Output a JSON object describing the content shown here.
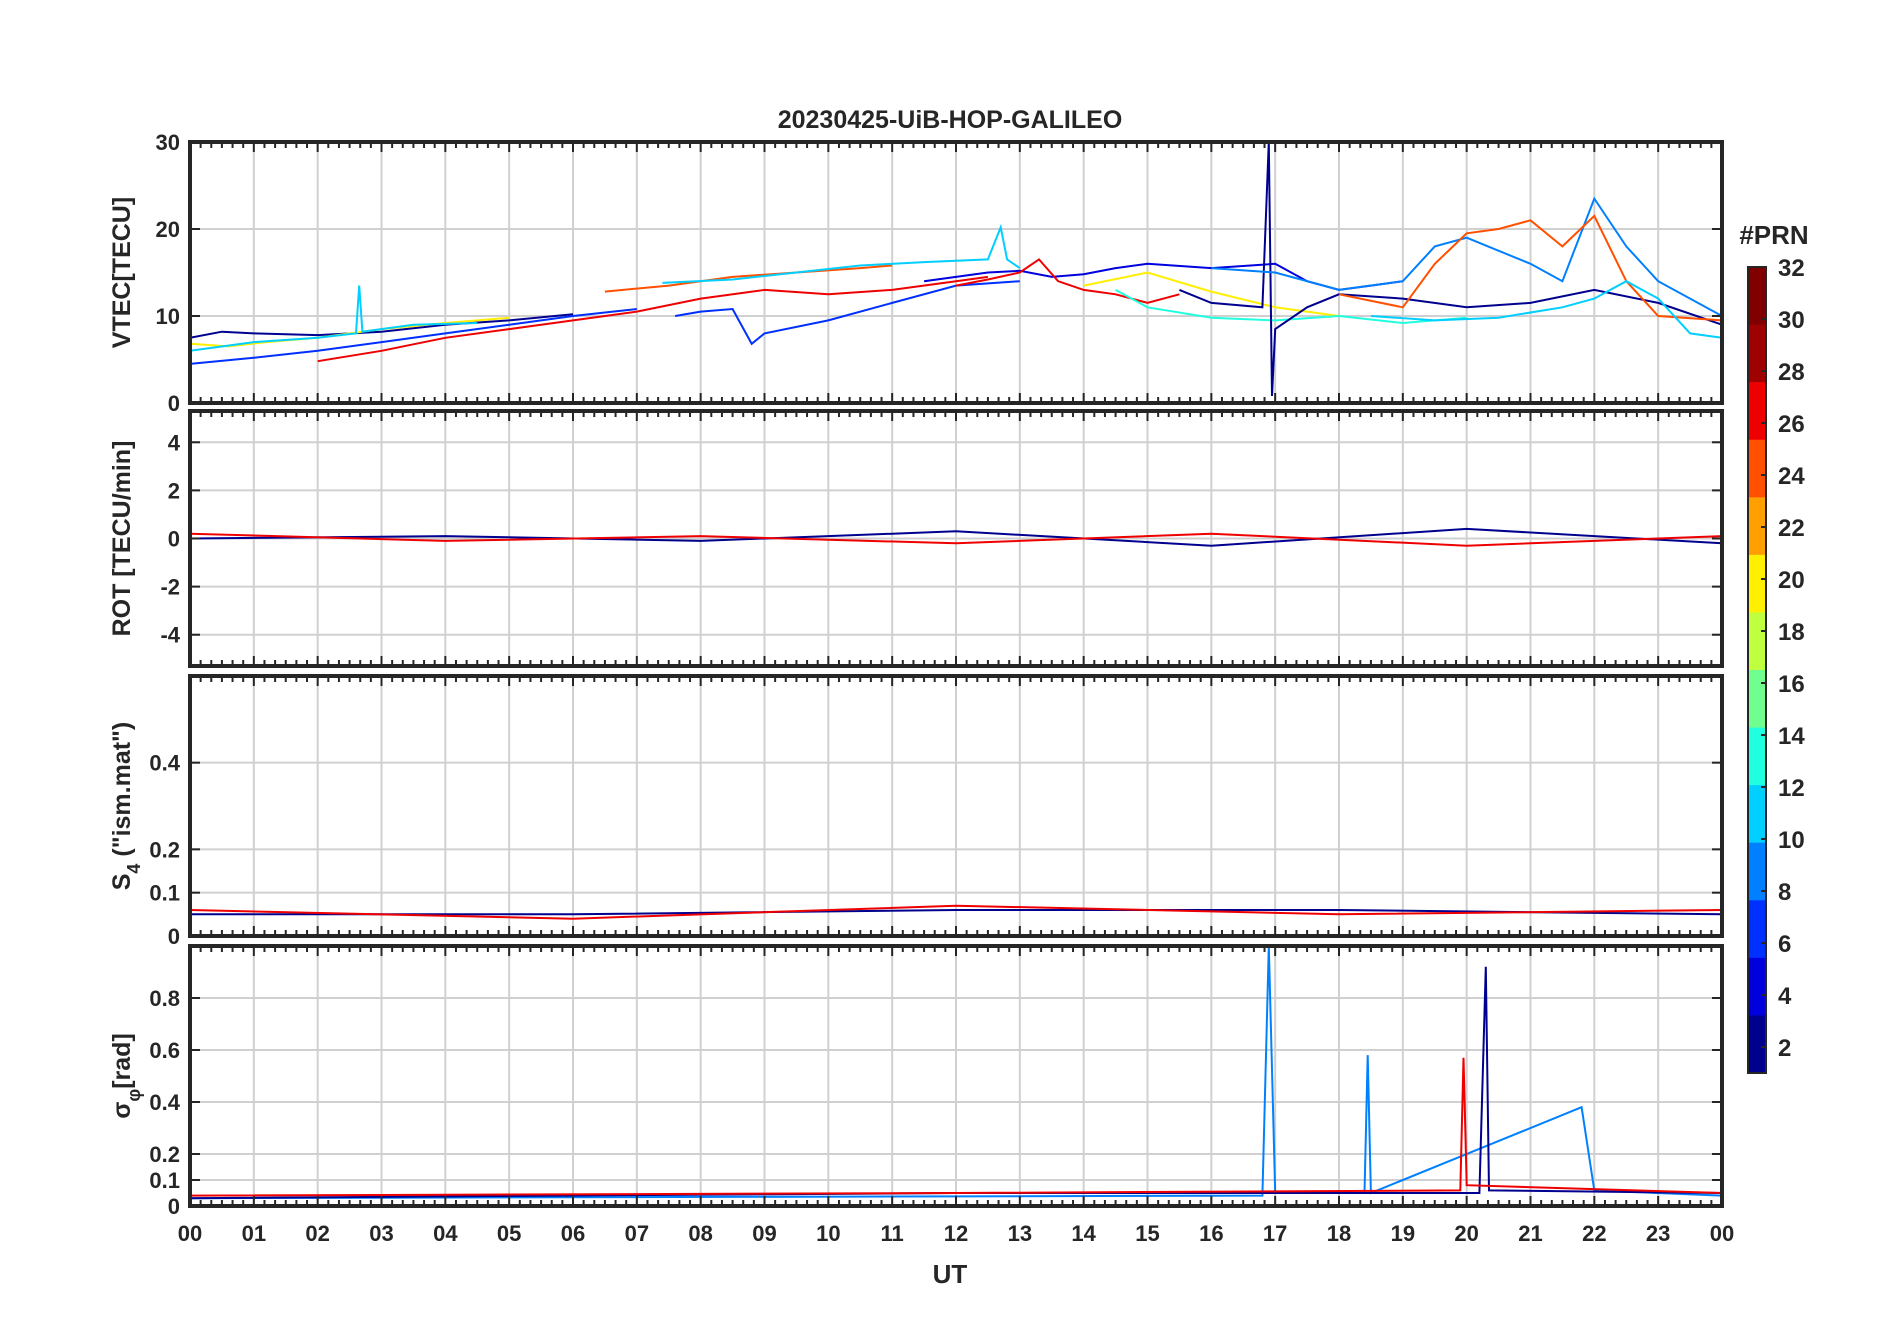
{
  "chart_data": {
    "type": "line",
    "title": "20230425-UiB-HOP-GALILEO",
    "xlabel": "UT",
    "x_ticks": [
      "00",
      "01",
      "02",
      "03",
      "04",
      "05",
      "06",
      "07",
      "08",
      "09",
      "10",
      "11",
      "12",
      "13",
      "14",
      "15",
      "16",
      "17",
      "18",
      "19",
      "20",
      "21",
      "22",
      "23",
      "00"
    ],
    "xlim_hours": [
      0,
      24
    ],
    "grid": true,
    "colorbar": {
      "title": "#PRN",
      "range": [
        1,
        32
      ],
      "ticks": [
        2,
        4,
        6,
        8,
        10,
        12,
        14,
        16,
        18,
        20,
        22,
        24,
        26,
        28,
        30,
        32
      ],
      "tick_labels": [
        "2",
        "4",
        "6",
        "8",
        "10",
        "12",
        "14",
        "16",
        "18",
        "20",
        "22",
        "24",
        "26",
        "28",
        "30",
        "32"
      ],
      "colormap": "jet",
      "colors": [
        "#00008f",
        "#0000df",
        "#0030ff",
        "#0080ff",
        "#00cfff",
        "#20ffdf",
        "#70ff8f",
        "#bfff40",
        "#ffef00",
        "#ff9f00",
        "#ff5000",
        "#ef0000",
        "#9f0000",
        "#800000"
      ],
      "placement": "right"
    },
    "panels": [
      {
        "id": "vtec",
        "ylabel": "VTEC[TECU]",
        "ylim": [
          0,
          30
        ],
        "yticks": [
          0,
          10,
          20,
          30
        ],
        "ytick_labels": [
          "0",
          "10",
          "20",
          "30"
        ],
        "series": [
          {
            "prn": 3,
            "points": [
              [
                0,
                7.5
              ],
              [
                0.5,
                8.2
              ],
              [
                1,
                8
              ],
              [
                2,
                7.8
              ],
              [
                3,
                8.2
              ],
              [
                4,
                9
              ],
              [
                5,
                9.5
              ],
              [
                6,
                10.2
              ]
            ]
          },
          {
            "prn": 20,
            "points": [
              [
                0,
                6.8
              ],
              [
                0.6,
                6.5
              ],
              [
                1.2,
                7
              ],
              [
                2,
                7.5
              ],
              [
                3,
                8.5
              ],
              [
                4,
                9.2
              ],
              [
                5,
                9.8
              ]
            ]
          },
          {
            "prn": 12,
            "points": [
              [
                0,
                6
              ],
              [
                1,
                7
              ],
              [
                2,
                7.5
              ],
              [
                2.6,
                8
              ],
              [
                2.65,
                13.5
              ],
              [
                2.7,
                8.2
              ],
              [
                3.5,
                9
              ],
              [
                4.5,
                9.2
              ]
            ]
          },
          {
            "prn": 6,
            "points": [
              [
                0,
                4.5
              ],
              [
                1,
                5.2
              ],
              [
                2,
                6
              ],
              [
                3,
                7
              ],
              [
                4,
                8
              ],
              [
                5,
                9
              ],
              [
                6,
                10
              ],
              [
                7,
                10.8
              ]
            ]
          },
          {
            "prn": 27,
            "points": [
              [
                2,
                4.8
              ],
              [
                3,
                6
              ],
              [
                4,
                7.5
              ],
              [
                5,
                8.5
              ],
              [
                6,
                9.5
              ],
              [
                7,
                10.5
              ],
              [
                8,
                12
              ],
              [
                9,
                13
              ],
              [
                10,
                12.5
              ],
              [
                11,
                13
              ],
              [
                12,
                14
              ],
              [
                12.5,
                14.5
              ]
            ]
          },
          {
            "prn": 24,
            "points": [
              [
                6.5,
                12.8
              ],
              [
                7.5,
                13.5
              ],
              [
                8.5,
                14.5
              ],
              [
                9.5,
                15
              ],
              [
                10.5,
                15.5
              ],
              [
                11,
                15.8
              ]
            ]
          },
          {
            "prn": 12,
            "points": [
              [
                7.4,
                13.8
              ],
              [
                8.5,
                14.2
              ],
              [
                9.5,
                15
              ],
              [
                10.5,
                15.8
              ],
              [
                11.5,
                16.2
              ],
              [
                12.5,
                16.5
              ],
              [
                12.7,
                20.2
              ],
              [
                12.8,
                16.5
              ],
              [
                13,
                15.5
              ]
            ]
          },
          {
            "prn": 6,
            "points": [
              [
                7.6,
                10
              ],
              [
                8,
                10.5
              ],
              [
                8.5,
                10.8
              ],
              [
                8.8,
                6.8
              ],
              [
                9,
                8
              ],
              [
                10,
                9.5
              ],
              [
                11,
                11.5
              ],
              [
                12,
                13.5
              ],
              [
                13,
                14
              ]
            ]
          },
          {
            "prn": 4,
            "points": [
              [
                11.5,
                14
              ],
              [
                12,
                14.5
              ],
              [
                12.5,
                15
              ],
              [
                13,
                15.2
              ],
              [
                13.5,
                14.5
              ],
              [
                14,
                14.8
              ],
              [
                14.5,
                15.5
              ],
              [
                15,
                16
              ],
              [
                16,
                15.5
              ],
              [
                17,
                16
              ],
              [
                17.5,
                14
              ],
              [
                18,
                13
              ],
              [
                18.5,
                13.5
              ],
              [
                19,
                14
              ]
            ]
          },
          {
            "prn": 27,
            "points": [
              [
                12,
                13.5
              ],
              [
                12.5,
                14.2
              ],
              [
                13,
                15
              ],
              [
                13.3,
                16.5
              ],
              [
                13.6,
                14
              ],
              [
                14,
                13
              ],
              [
                14.5,
                12.5
              ],
              [
                15,
                11.5
              ],
              [
                15.5,
                12.5
              ]
            ]
          },
          {
            "prn": 20,
            "points": [
              [
                14,
                13.5
              ],
              [
                15,
                15
              ],
              [
                16,
                12.8
              ],
              [
                17,
                11
              ],
              [
                18,
                10
              ]
            ]
          },
          {
            "prn": 14,
            "points": [
              [
                14.5,
                13
              ],
              [
                15,
                11
              ],
              [
                16,
                9.8
              ],
              [
                17,
                9.5
              ],
              [
                18,
                10
              ],
              [
                19,
                9.2
              ],
              [
                20,
                9.8
              ]
            ]
          },
          {
            "prn": 1,
            "points": [
              [
                15.5,
                13
              ],
              [
                16,
                11.5
              ],
              [
                16.8,
                11
              ],
              [
                16.9,
                30
              ],
              [
                16.95,
                0.8
              ],
              [
                17,
                8.5
              ],
              [
                17.5,
                11
              ],
              [
                18,
                12.5
              ],
              [
                19,
                12
              ],
              [
                20,
                11
              ],
              [
                21,
                11.5
              ],
              [
                22,
                13
              ],
              [
                23,
                11.5
              ],
              [
                24,
                9
              ]
            ]
          },
          {
            "prn": 9,
            "points": [
              [
                16,
                15.5
              ],
              [
                17,
                15
              ],
              [
                18,
                13
              ],
              [
                19,
                14
              ],
              [
                19.5,
                18
              ],
              [
                20,
                19
              ],
              [
                21,
                16
              ],
              [
                21.5,
                14
              ],
              [
                22,
                23.5
              ],
              [
                22.5,
                18
              ],
              [
                23,
                14
              ],
              [
                24,
                10
              ]
            ]
          },
          {
            "prn": 24,
            "points": [
              [
                18,
                12.5
              ],
              [
                19,
                11
              ],
              [
                19.5,
                16
              ],
              [
                20,
                19.5
              ],
              [
                20.5,
                20
              ],
              [
                21,
                21
              ],
              [
                21.5,
                18
              ],
              [
                22,
                21.5
              ],
              [
                22.5,
                14
              ],
              [
                23,
                10
              ],
              [
                24,
                9.5
              ]
            ]
          },
          {
            "prn": 12,
            "points": [
              [
                18.5,
                10
              ],
              [
                19.5,
                9.5
              ],
              [
                20.5,
                9.8
              ],
              [
                21.5,
                11
              ],
              [
                22,
                12
              ],
              [
                22.5,
                14
              ],
              [
                23,
                12
              ],
              [
                23.5,
                8
              ],
              [
                24,
                7.5
              ]
            ]
          }
        ]
      },
      {
        "id": "rot",
        "ylabel": "ROT [TECU/min]",
        "ylim": [
          -5.3,
          5.3
        ],
        "yticks": [
          -4,
          -2,
          0,
          2,
          4
        ],
        "ytick_labels": [
          "-4",
          "-2",
          "0",
          "2",
          "4"
        ],
        "series": [
          {
            "prn": 3,
            "points": [
              [
                0,
                0
              ],
              [
                4,
                0.1
              ],
              [
                8,
                -0.1
              ],
              [
                12,
                0.3
              ],
              [
                16,
                -0.3
              ],
              [
                20,
                0.4
              ],
              [
                24,
                -0.2
              ]
            ]
          },
          {
            "prn": 26,
            "points": [
              [
                0,
                0.2
              ],
              [
                4,
                -0.1
              ],
              [
                8,
                0.1
              ],
              [
                12,
                -0.2
              ],
              [
                16,
                0.2
              ],
              [
                20,
                -0.3
              ],
              [
                24,
                0.1
              ]
            ]
          }
        ]
      },
      {
        "id": "s4",
        "ylabel_main": "S",
        "ylabel_sub": "4",
        "ylabel_rest": " (\"ism.mat\")",
        "ylim": [
          0,
          0.6
        ],
        "yticks": [
          0,
          0.1,
          0.2,
          0.4
        ],
        "ytick_labels": [
          "0",
          "0.1",
          "0.2",
          "0.4"
        ],
        "series": [
          {
            "prn": 3,
            "points": [
              [
                0,
                0.05
              ],
              [
                6,
                0.05
              ],
              [
                12,
                0.06
              ],
              [
                18,
                0.06
              ],
              [
                24,
                0.05
              ]
            ]
          },
          {
            "prn": 26,
            "points": [
              [
                0,
                0.06
              ],
              [
                6,
                0.04
              ],
              [
                12,
                0.07
              ],
              [
                18,
                0.05
              ],
              [
                24,
                0.06
              ]
            ]
          }
        ]
      },
      {
        "id": "sigma",
        "ylabel_main": "σ",
        "ylabel_sub": "φ",
        "ylabel_rest": "[rad]",
        "ylim": [
          0,
          1
        ],
        "yticks": [
          0,
          0.1,
          0.2,
          0.4,
          0.6,
          0.8
        ],
        "ytick_labels": [
          "0",
          "0.1",
          "0.2",
          "0.4",
          "0.6",
          "0.8"
        ],
        "series": [
          {
            "prn": 9,
            "points": [
              [
                0,
                0.03
              ],
              [
                16.8,
                0.04
              ],
              [
                16.9,
                1.0
              ],
              [
                17,
                0.05
              ],
              [
                18.4,
                0.05
              ],
              [
                18.45,
                0.58
              ],
              [
                18.5,
                0.05
              ],
              [
                21.8,
                0.38
              ],
              [
                22,
                0.06
              ],
              [
                24,
                0.04
              ]
            ]
          },
          {
            "prn": 3,
            "points": [
              [
                0,
                0.03
              ],
              [
                12,
                0.05
              ],
              [
                20.2,
                0.05
              ],
              [
                20.3,
                0.92
              ],
              [
                20.35,
                0.06
              ],
              [
                24,
                0.05
              ]
            ]
          },
          {
            "prn": 26,
            "points": [
              [
                0,
                0.04
              ],
              [
                12,
                0.05
              ],
              [
                19.9,
                0.06
              ],
              [
                19.95,
                0.57
              ],
              [
                20,
                0.08
              ],
              [
                24,
                0.05
              ]
            ]
          }
        ]
      }
    ]
  }
}
